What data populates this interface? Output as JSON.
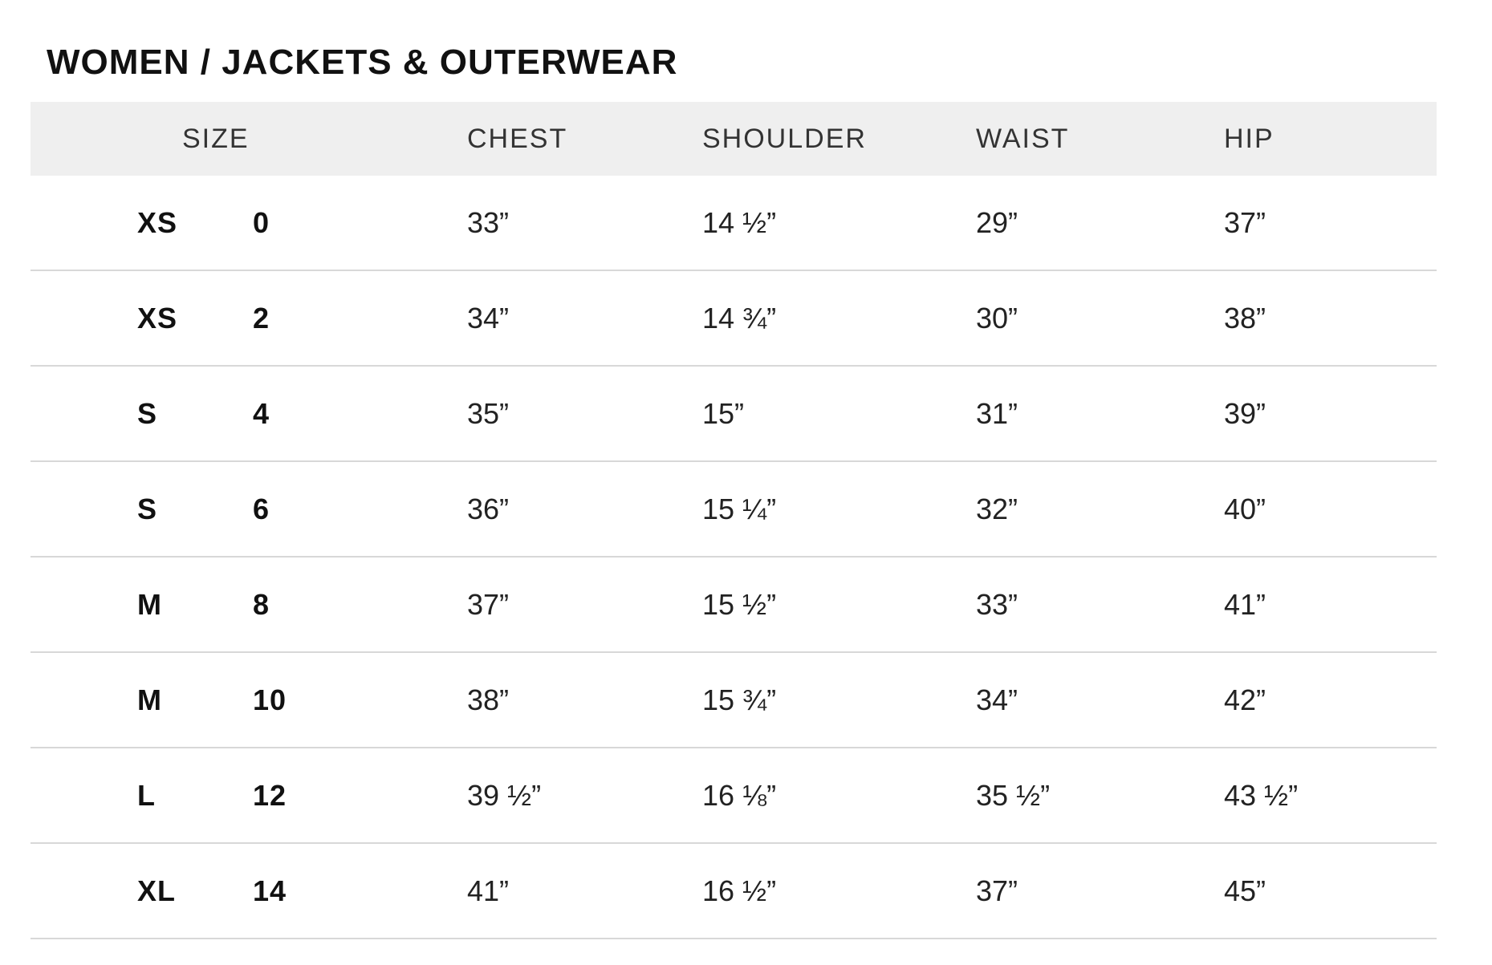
{
  "page": {
    "title": "WOMEN / JACKETS & OUTERWEAR"
  },
  "table": {
    "columns": {
      "size": "SIZE",
      "chest": "CHEST",
      "shoulder": "SHOULDER",
      "waist": "WAIST",
      "hip": "HIP"
    },
    "rows": [
      {
        "size_letter": "XS",
        "size_number": "0",
        "chest": "33”",
        "shoulder": "14 ½”",
        "waist": "29”",
        "hip": "37”"
      },
      {
        "size_letter": "XS",
        "size_number": "2",
        "chest": "34”",
        "shoulder": "14 ¾”",
        "waist": "30”",
        "hip": "38”"
      },
      {
        "size_letter": "S",
        "size_number": "4",
        "chest": "35”",
        "shoulder": "15”",
        "waist": "31”",
        "hip": "39”"
      },
      {
        "size_letter": "S",
        "size_number": "6",
        "chest": "36”",
        "shoulder": "15 ¼”",
        "waist": "32”",
        "hip": "40”"
      },
      {
        "size_letter": "M",
        "size_number": "8",
        "chest": "37”",
        "shoulder": "15 ½”",
        "waist": "33”",
        "hip": "41”"
      },
      {
        "size_letter": "M",
        "size_number": "10",
        "chest": "38”",
        "shoulder": "15 ¾”",
        "waist": "34”",
        "hip": "42”"
      },
      {
        "size_letter": "L",
        "size_number": "12",
        "chest": "39 ½”",
        "shoulder": "16 ⅛”",
        "waist": "35 ½”",
        "hip": "43 ½”"
      },
      {
        "size_letter": "XL",
        "size_number": "14",
        "chest": "41”",
        "shoulder": "16 ½”",
        "waist": "37”",
        "hip": "45”"
      }
    ]
  },
  "colors": {
    "header_background": "#efefef",
    "row_divider": "#d8d8d8",
    "title_text": "#111111",
    "header_text": "#333333",
    "value_text": "#222222"
  }
}
